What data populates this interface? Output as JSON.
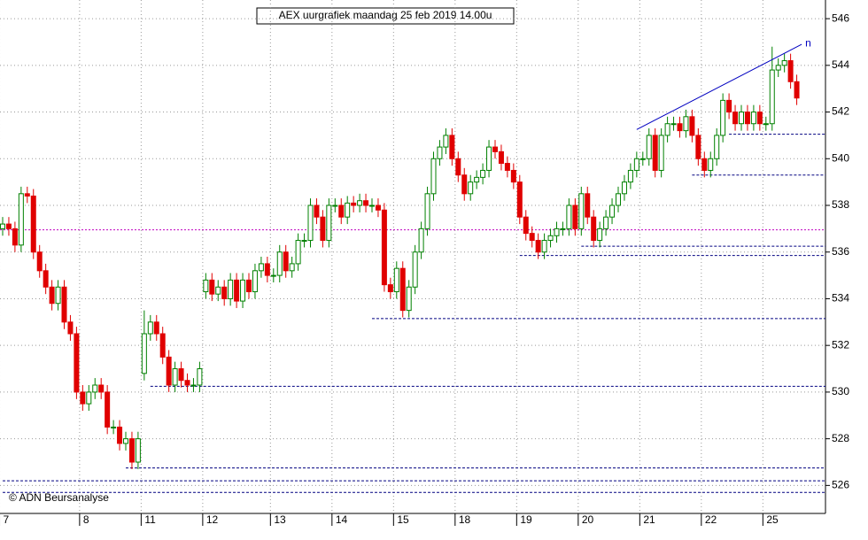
{
  "chart_data": {
    "type": "candlestick",
    "title": "AEX uurgrafiek maandag 25 feb 2019 14.00u",
    "source": "© ADN Beursanalyse",
    "categories": [
      "7",
      null,
      null,
      null,
      null,
      null,
      null,
      null,
      null,
      null,
      null,
      null,
      null,
      "8",
      null,
      null,
      null,
      null,
      null,
      null,
      null,
      null,
      null,
      "11",
      null,
      null,
      null,
      null,
      null,
      null,
      null,
      null,
      null,
      "12",
      null,
      null,
      null,
      null,
      null,
      null,
      null,
      null,
      null,
      null,
      "13",
      null,
      null,
      null,
      null,
      null,
      null,
      null,
      null,
      null,
      "14",
      null,
      null,
      null,
      null,
      null,
      null,
      null,
      null,
      null,
      "15",
      null,
      null,
      null,
      null,
      null,
      null,
      null,
      null,
      null,
      "18",
      null,
      null,
      null,
      null,
      null,
      null,
      null,
      null,
      null,
      "19",
      null,
      null,
      null,
      null,
      null,
      null,
      null,
      null,
      null,
      "20",
      null,
      null,
      null,
      null,
      null,
      null,
      null,
      null,
      null,
      "21",
      null,
      null,
      null,
      null,
      null,
      null,
      null,
      null,
      null,
      "22",
      null,
      null,
      null,
      null,
      null,
      null,
      null,
      null,
      null,
      "25",
      null,
      null,
      null,
      null,
      null
    ],
    "open": [
      537.0,
      537.2,
      537.0,
      536.3,
      538.5,
      538.4,
      536.0,
      535.2,
      534.5,
      533.8,
      534.5,
      533.0,
      532.5,
      530.0,
      529.5,
      530.0,
      530.3,
      530.0,
      528.5,
      528.5,
      527.8,
      528.0,
      527.0,
      530.8,
      532.5,
      533.0,
      532.5,
      531.5,
      530.3,
      531.0,
      530.5,
      530.3,
      530.3,
      534.3,
      534.8,
      534.2,
      534.5,
      534.0,
      534.8,
      533.9,
      534.8,
      534.3,
      535.2,
      535.5,
      535.0,
      535.0,
      536.0,
      535.2,
      535.5,
      536.5,
      536.5,
      538.0,
      537.5,
      536.5,
      538.0,
      538.0,
      537.5,
      538.1,
      538.0,
      538.2,
      538.0,
      538.0,
      537.8,
      534.6,
      534.3,
      535.3,
      533.5,
      534.5,
      536.0,
      537.0,
      538.5,
      540.0,
      540.5,
      541.0,
      540.0,
      539.3,
      538.5,
      539.0,
      539.2,
      539.5,
      540.5,
      540.3,
      539.8,
      539.5,
      539.0,
      537.5,
      536.8,
      536.5,
      536.0,
      536.5,
      536.7,
      537.0,
      537.0,
      538.0,
      537.0,
      538.5,
      537.5,
      536.5,
      537.0,
      537.5,
      538.0,
      538.5,
      539.0,
      539.5,
      540.0,
      540.0,
      541.0,
      539.5,
      541.0,
      541.5,
      541.5,
      541.2,
      541.8,
      541.0,
      540.0,
      539.5,
      540.0,
      541.0,
      542.5,
      542.0,
      541.5,
      542.0,
      541.5,
      542.0,
      541.5,
      541.5,
      543.8,
      544.0,
      544.2,
      543.3
    ],
    "high": [
      537.5,
      537.5,
      537.3,
      538.8,
      538.8,
      538.7,
      536.3,
      535.5,
      534.8,
      534.8,
      534.8,
      533.3,
      532.8,
      530.3,
      530.3,
      530.6,
      530.6,
      530.3,
      528.8,
      528.8,
      528.3,
      528.3,
      528.3,
      533.5,
      533.3,
      533.3,
      532.8,
      531.8,
      531.3,
      531.3,
      530.8,
      530.6,
      531.3,
      535.1,
      535.1,
      534.8,
      534.8,
      535.1,
      535.1,
      535.1,
      535.1,
      535.5,
      535.8,
      535.8,
      535.3,
      536.3,
      536.3,
      535.8,
      536.8,
      536.8,
      538.3,
      538.3,
      537.8,
      538.3,
      538.3,
      538.3,
      538.4,
      538.4,
      538.5,
      538.5,
      538.3,
      538.3,
      538.1,
      534.9,
      535.6,
      535.6,
      534.8,
      536.3,
      537.3,
      538.8,
      540.3,
      540.8,
      541.3,
      541.3,
      540.3,
      539.6,
      539.3,
      539.5,
      539.8,
      540.8,
      540.8,
      540.6,
      540.1,
      539.8,
      539.3,
      537.8,
      537.1,
      536.8,
      536.8,
      537.0,
      537.3,
      537.3,
      538.3,
      538.3,
      538.8,
      538.8,
      537.8,
      537.3,
      537.8,
      538.3,
      538.8,
      539.3,
      539.8,
      540.3,
      540.3,
      541.3,
      541.3,
      541.3,
      541.8,
      541.8,
      541.8,
      542.1,
      542.1,
      541.3,
      540.3,
      540.3,
      541.3,
      542.8,
      542.8,
      542.3,
      542.3,
      542.3,
      542.3,
      542.3,
      541.8,
      544.8,
      544.3,
      544.5,
      544.5,
      543.6
    ],
    "low": [
      536.7,
      536.7,
      536.0,
      536.0,
      538.1,
      535.7,
      534.9,
      534.2,
      533.5,
      533.5,
      532.7,
      532.2,
      529.7,
      529.2,
      529.2,
      529.7,
      529.7,
      528.2,
      528.2,
      527.5,
      527.5,
      526.7,
      526.7,
      530.5,
      532.2,
      532.2,
      531.2,
      530.0,
      530.0,
      530.2,
      530.0,
      530.0,
      530.0,
      534.0,
      533.9,
      533.9,
      533.7,
      533.7,
      533.6,
      533.6,
      534.0,
      534.0,
      534.9,
      534.7,
      534.7,
      534.7,
      534.9,
      534.9,
      535.2,
      536.2,
      536.2,
      537.2,
      536.2,
      536.2,
      537.7,
      537.2,
      537.2,
      537.7,
      537.7,
      537.7,
      537.7,
      537.5,
      534.3,
      534.0,
      534.0,
      533.2,
      533.2,
      534.2,
      535.7,
      536.7,
      538.2,
      539.7,
      540.2,
      539.7,
      539.0,
      538.2,
      538.2,
      538.7,
      538.9,
      539.2,
      540.0,
      539.5,
      539.2,
      538.7,
      537.2,
      536.5,
      536.2,
      535.7,
      535.7,
      536.2,
      536.4,
      536.7,
      536.7,
      536.7,
      536.7,
      537.2,
      536.2,
      536.2,
      536.7,
      537.2,
      537.7,
      538.2,
      538.7,
      539.2,
      539.7,
      539.7,
      539.2,
      539.2,
      540.7,
      541.2,
      540.9,
      540.9,
      540.7,
      539.7,
      539.2,
      539.2,
      539.7,
      540.7,
      541.7,
      541.2,
      541.2,
      541.2,
      541.2,
      541.2,
      541.2,
      541.2,
      543.5,
      543.7,
      543.0,
      542.3
    ],
    "close": [
      537.2,
      537.0,
      536.3,
      538.5,
      538.4,
      536.0,
      535.2,
      534.5,
      533.8,
      534.5,
      533.0,
      532.5,
      530.0,
      529.5,
      530.0,
      530.3,
      530.0,
      528.5,
      528.5,
      527.8,
      528.0,
      527.0,
      528.0,
      532.5,
      533.0,
      532.5,
      531.5,
      530.3,
      531.0,
      530.5,
      530.3,
      530.3,
      531.0,
      534.8,
      534.2,
      534.5,
      534.0,
      534.8,
      533.9,
      534.8,
      534.3,
      535.2,
      535.5,
      535.0,
      535.0,
      536.0,
      535.2,
      535.5,
      536.5,
      536.5,
      538.0,
      537.5,
      536.5,
      538.0,
      538.0,
      537.5,
      538.1,
      538.0,
      538.2,
      538.0,
      538.0,
      537.8,
      534.6,
      534.3,
      535.3,
      533.5,
      534.5,
      536.0,
      537.0,
      538.5,
      540.0,
      540.5,
      541.0,
      540.0,
      539.3,
      538.5,
      539.0,
      539.2,
      539.5,
      540.5,
      540.3,
      539.8,
      539.5,
      539.0,
      537.5,
      536.8,
      536.5,
      536.0,
      536.5,
      536.7,
      537.0,
      537.0,
      538.0,
      537.0,
      538.5,
      537.5,
      536.5,
      537.0,
      537.5,
      538.0,
      538.5,
      539.0,
      539.5,
      540.0,
      540.0,
      541.0,
      539.5,
      541.0,
      541.5,
      541.5,
      541.2,
      541.8,
      541.0,
      540.0,
      539.5,
      540.0,
      541.0,
      542.5,
      542.0,
      541.5,
      542.0,
      541.5,
      542.0,
      541.5,
      541.5,
      543.8,
      544.0,
      544.2,
      543.3,
      542.6
    ],
    "up_color": "#008000",
    "down_color": "#e00000",
    "ylim": [
      524.8,
      546.8
    ],
    "yticks": [
      526,
      528,
      530,
      532,
      534,
      536,
      538,
      540,
      542,
      544,
      546
    ],
    "grid": true,
    "reference_line": {
      "value": 536.95,
      "color": "#c000c0"
    },
    "support_levels": {
      "color": "#000080",
      "levels": [
        {
          "value": 541.05,
          "from": 118
        },
        {
          "value": 539.3,
          "from": 112
        },
        {
          "value": 536.25,
          "from": 94
        },
        {
          "value": 535.85,
          "from": 84
        },
        {
          "value": 533.15,
          "from": 60
        },
        {
          "value": 530.25,
          "from": 24
        },
        {
          "value": 526.75,
          "from": 20
        },
        {
          "value": 526.2,
          "from": 0
        },
        {
          "value": 525.7,
          "from": 0
        }
      ]
    },
    "trendline": {
      "x": [
        103,
        129.8
      ],
      "y": [
        541.25,
        544.9
      ],
      "label": "n",
      "color": "#0000c0"
    }
  }
}
